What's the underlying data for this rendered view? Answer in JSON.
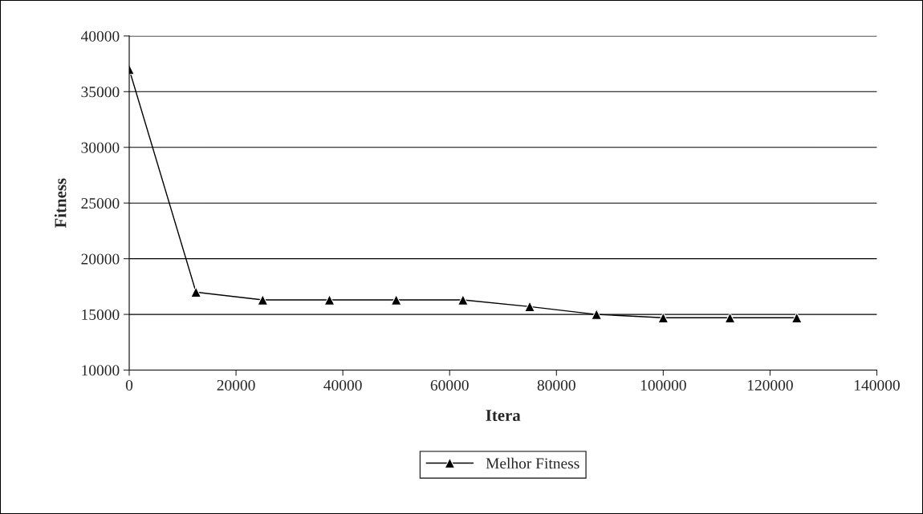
{
  "chart_data": {
    "type": "line",
    "xlabel": "Itera",
    "ylabel": "Fitness",
    "x": [
      0,
      12500,
      25000,
      37500,
      50000,
      62500,
      75000,
      87500,
      100000,
      112500,
      125000
    ],
    "series": [
      {
        "name": "Melhor Fitness",
        "color": "#000000",
        "values": [
          37000,
          17000,
          16300,
          16300,
          16300,
          16300,
          15700,
          15000,
          14700,
          14700,
          14700
        ]
      }
    ],
    "xlim": [
      0,
      140000
    ],
    "xticks": [
      0,
      20000,
      40000,
      60000,
      80000,
      100000,
      120000,
      140000
    ],
    "ylim": [
      10000,
      40000
    ],
    "yticks": [
      10000,
      15000,
      20000,
      25000,
      30000,
      35000,
      40000
    ],
    "grid": "y",
    "legend": "bottom",
    "marker": "triangle",
    "line_style": "solid"
  }
}
